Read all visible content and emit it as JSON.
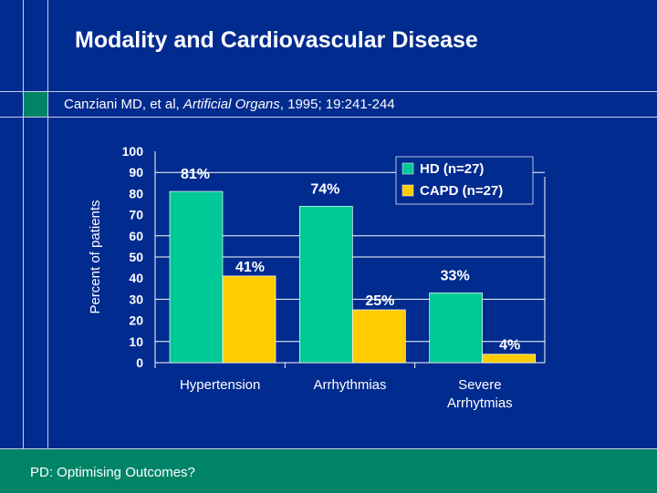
{
  "slide": {
    "title": "Modality and Cardiovascular Disease",
    "citation_prefix": "Canziani MD, et al, ",
    "citation_journal": "Artificial Organs",
    "citation_suffix": ", 1995; 19:241-244",
    "footer": "PD: Optimising Outcomes?"
  },
  "colors": {
    "background": "#012b8e",
    "accent": "#008468",
    "hd": "#00c896",
    "capd": "#ffcc00"
  },
  "chart_data": {
    "type": "bar",
    "ylabel": "Percent of patients",
    "ylim": [
      0,
      100
    ],
    "yticks": [
      0,
      10,
      20,
      30,
      40,
      50,
      60,
      70,
      80,
      90,
      100
    ],
    "categories": [
      "Hypertension",
      "Arrhythmias",
      "Severe Arrhytmias"
    ],
    "category_lines": [
      [
        "Hypertension"
      ],
      [
        "Arrhythmias"
      ],
      [
        "Severe",
        "Arrhytmias"
      ]
    ],
    "series": [
      {
        "name": "HD (n=27)",
        "values": [
          81,
          74,
          33
        ],
        "labels": [
          "81%",
          "74%",
          "33%"
        ]
      },
      {
        "name": "CAPD (n=27)",
        "values": [
          41,
          25,
          4
        ],
        "labels": [
          "41%",
          "25%",
          "4%"
        ]
      }
    ],
    "gridlines": [
      10,
      30,
      50,
      60,
      90
    ],
    "legend": "top-right"
  }
}
